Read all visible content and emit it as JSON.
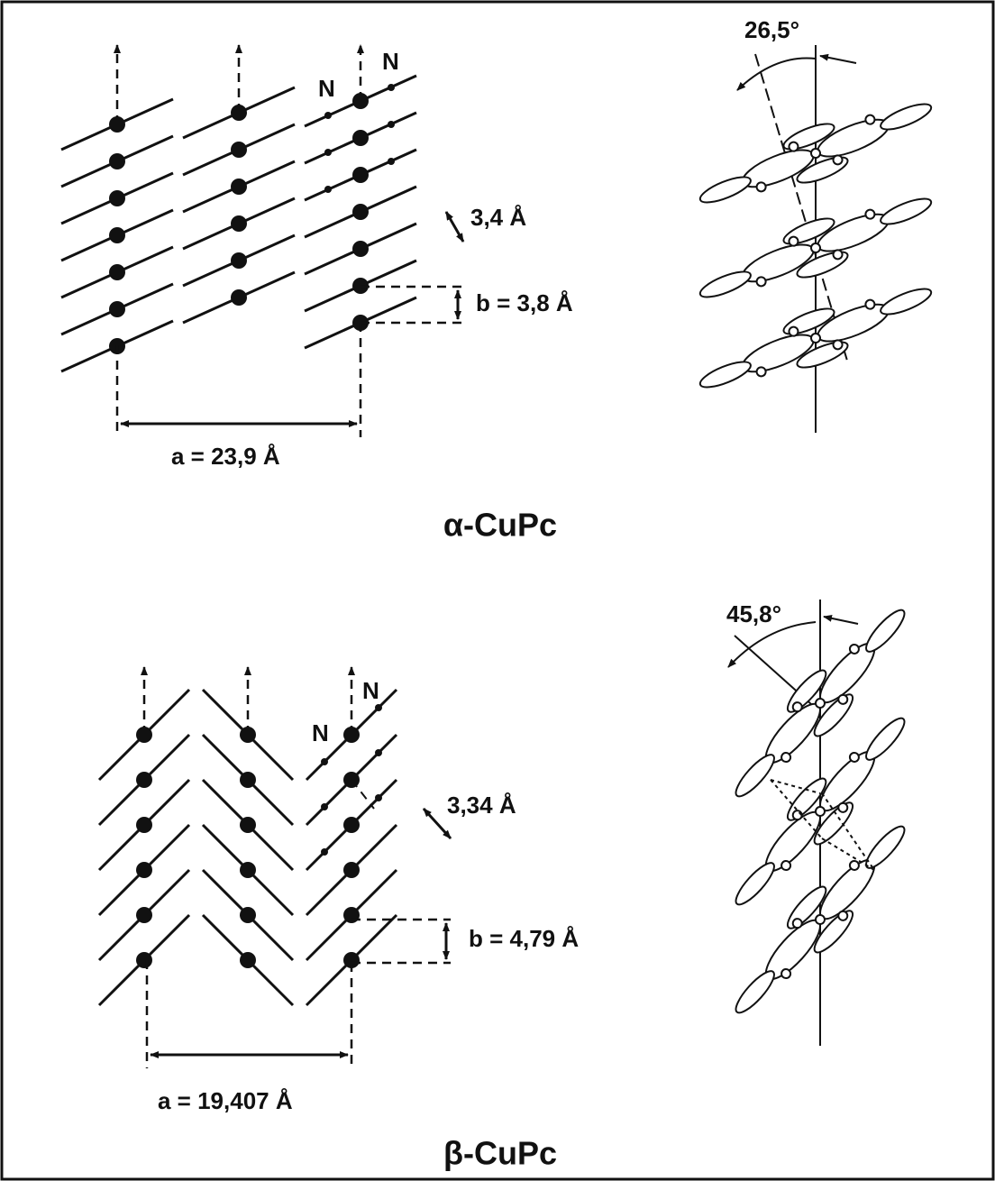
{
  "alpha": {
    "angle": "26,5°",
    "n_labels": [
      "N",
      "N"
    ],
    "spacing": "3,4 Å",
    "b": "b = 3,8 Å",
    "a": "a = 23,9 Å",
    "caption": "α-CuPc"
  },
  "beta": {
    "angle": "45,8°",
    "n_labels": [
      "N",
      "N"
    ],
    "spacing": "3,34 Å",
    "b": "b = 4,79 Å",
    "a": "a = 19,407 Å",
    "caption": "β-CuPc"
  }
}
